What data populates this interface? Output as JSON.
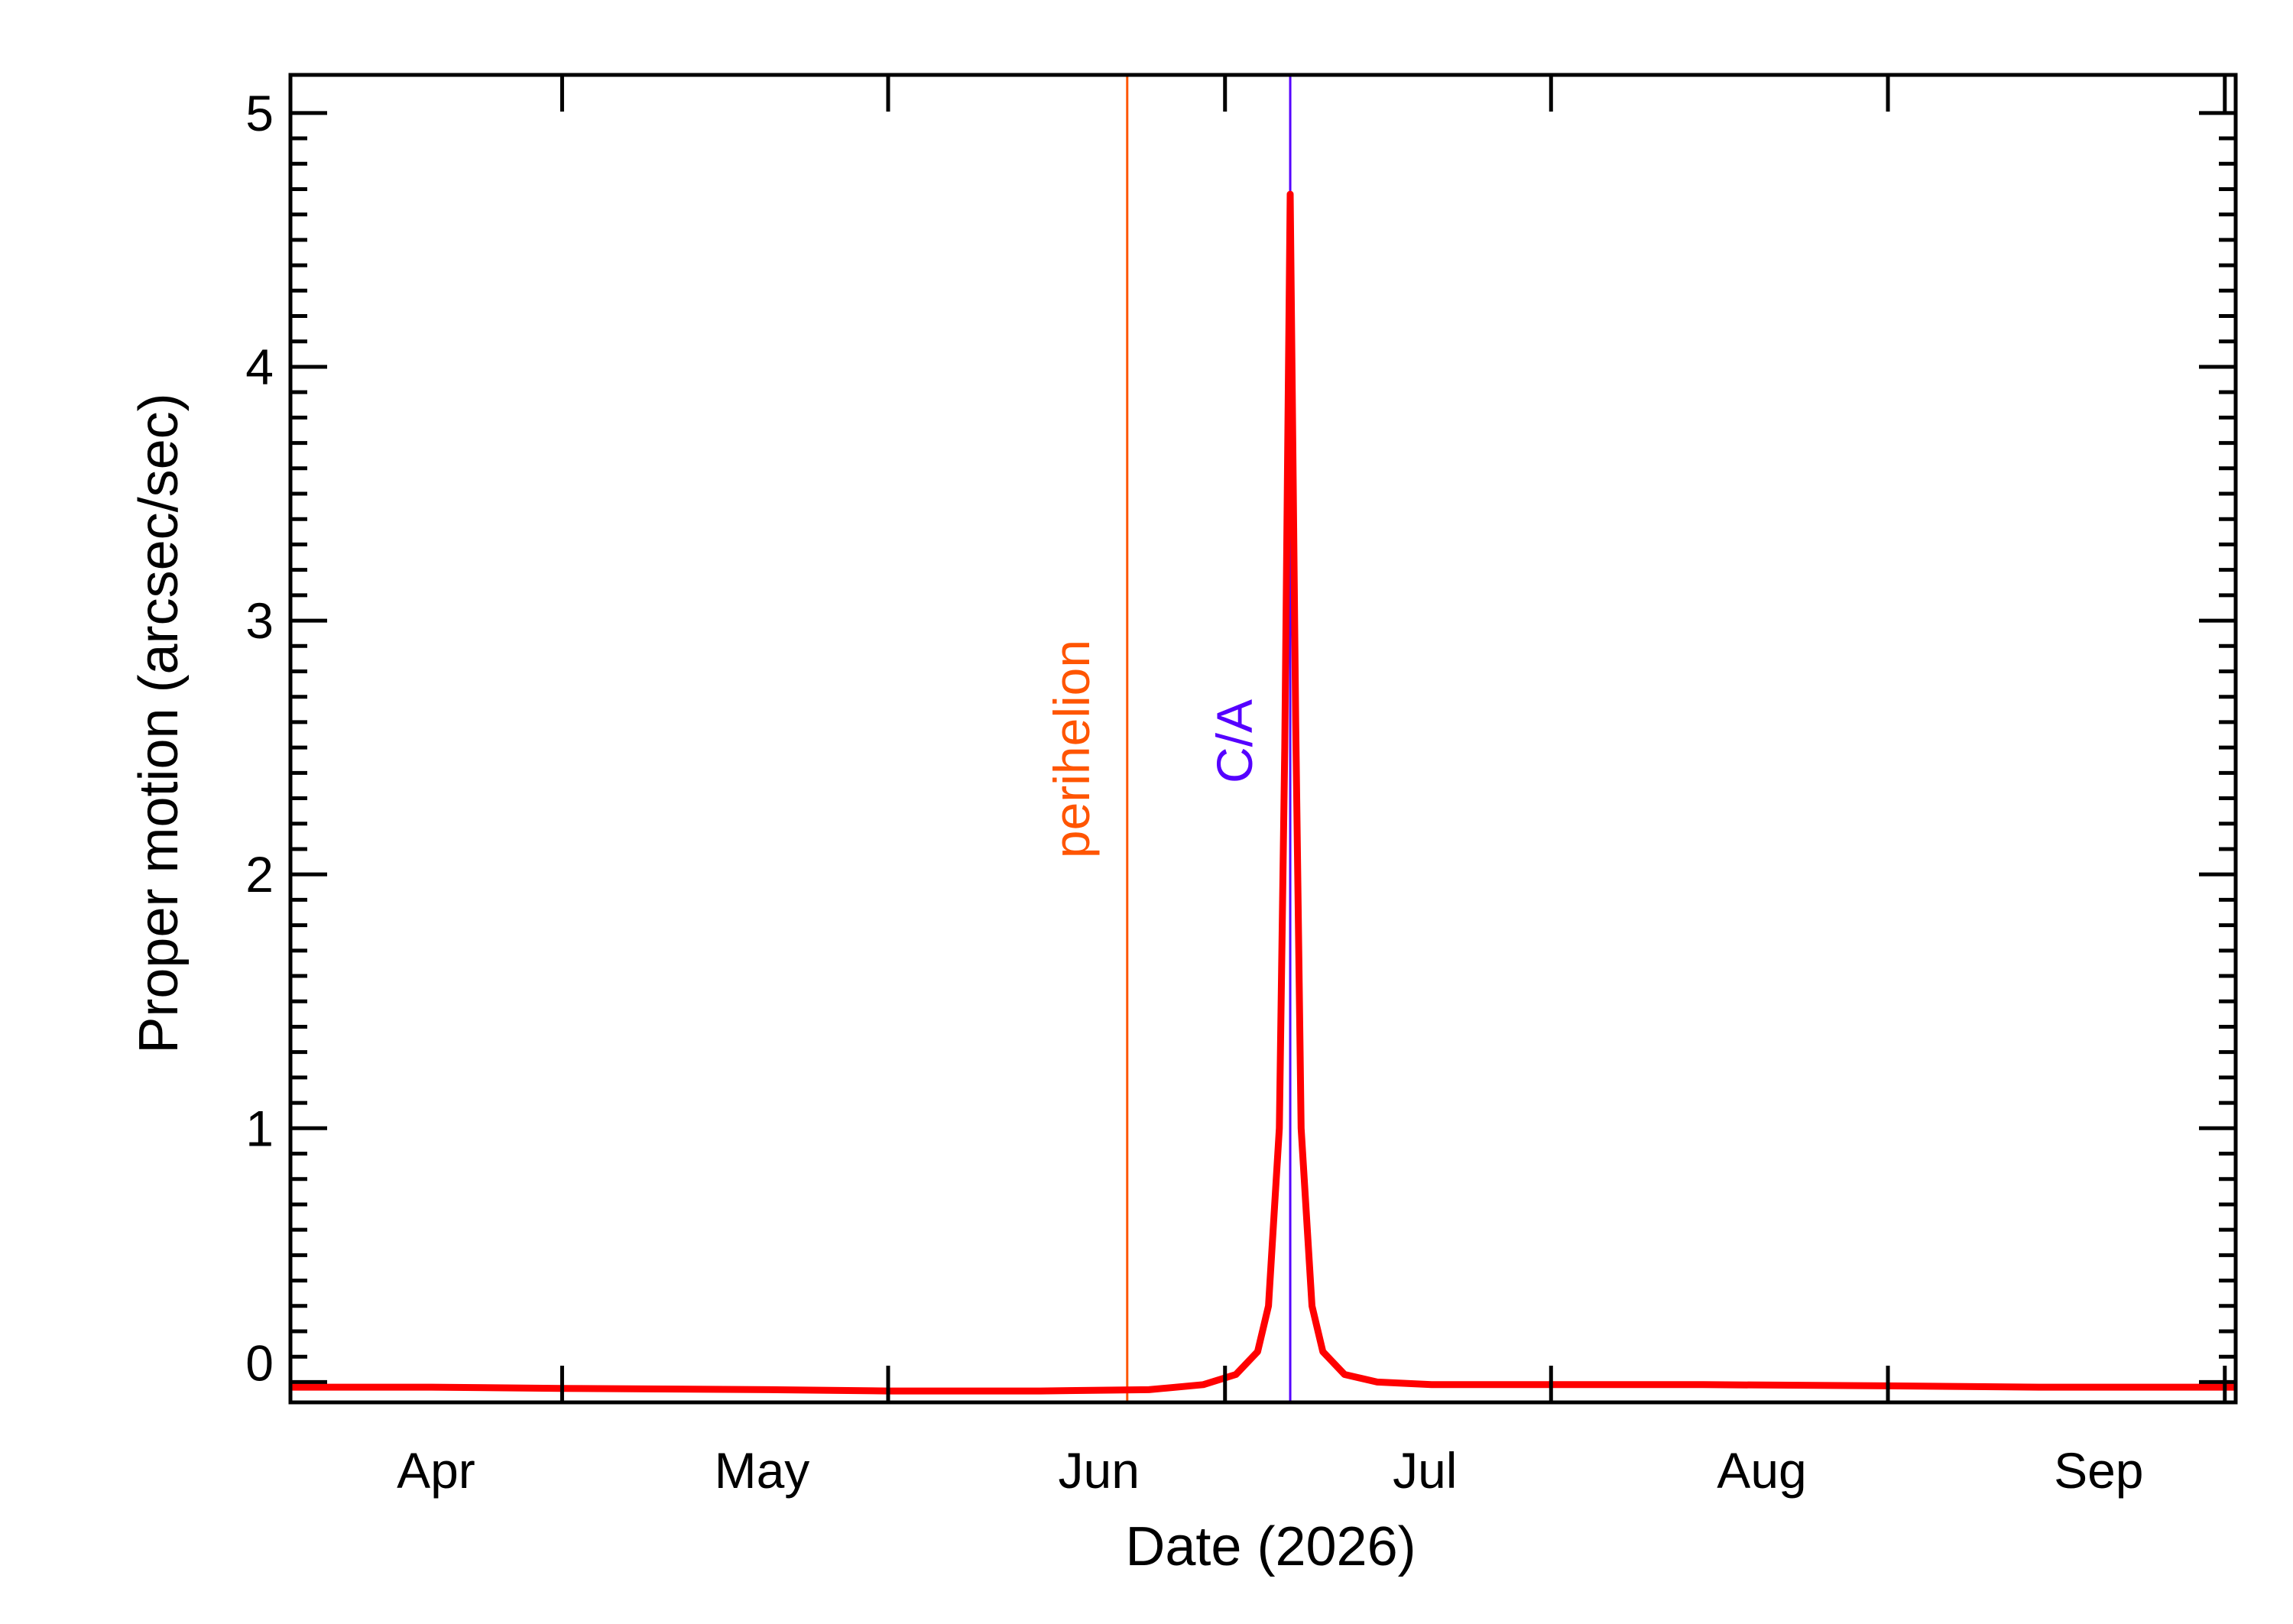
{
  "chart_data": {
    "type": "line",
    "title": "",
    "xlabel": "Date (2026)",
    "ylabel": "Proper motion (arcsec/sec)",
    "x_tick_labels": [
      "Apr",
      "May",
      "Jun",
      "Jul",
      "Aug",
      "Sep"
    ],
    "x_tick_dates": [
      "2026-04-01",
      "2026-05-01",
      "2026-06-01",
      "2026-07-01",
      "2026-08-01",
      "2026-09-01"
    ],
    "y_tick_labels": [
      "0",
      "1",
      "2",
      "3",
      "4",
      "5"
    ],
    "xlim": [
      "2026-03-07",
      "2026-09-02"
    ],
    "ylim": [
      -0.08,
      5.15
    ],
    "grid": false,
    "legend": "none",
    "series": [
      {
        "color": "#ff0000",
        "points": [
          [
            "2026-03-07",
            -0.02
          ],
          [
            "2026-03-20",
            -0.02
          ],
          [
            "2026-04-01",
            -0.025
          ],
          [
            "2026-04-20",
            -0.03
          ],
          [
            "2026-05-01",
            -0.035
          ],
          [
            "2026-05-15",
            -0.035
          ],
          [
            "2026-05-25",
            -0.03
          ],
          [
            "2026-05-30",
            -0.01
          ],
          [
            "2026-06-02",
            0.03
          ],
          [
            "2026-06-04",
            0.12
          ],
          [
            "2026-06-05",
            0.3
          ],
          [
            "2026-06-06",
            1.0
          ],
          [
            "2026-06-06T12:00",
            2.5
          ],
          [
            "2026-06-07",
            4.68
          ],
          [
            "2026-06-07T12:00",
            2.6
          ],
          [
            "2026-06-08",
            1.0
          ],
          [
            "2026-06-09",
            0.3
          ],
          [
            "2026-06-10",
            0.12
          ],
          [
            "2026-06-12",
            0.03
          ],
          [
            "2026-06-15",
            0.0
          ],
          [
            "2026-06-20",
            -0.01
          ],
          [
            "2026-07-01",
            -0.01
          ],
          [
            "2026-07-15",
            -0.01
          ],
          [
            "2026-08-01",
            -0.015
          ],
          [
            "2026-08-15",
            -0.02
          ],
          [
            "2026-09-02",
            -0.02
          ]
        ]
      }
    ],
    "markers": [
      {
        "label": "perihelion",
        "date": "2026-05-23",
        "color": "#ff5500"
      },
      {
        "label": "C/A",
        "date": "2026-06-07",
        "color": "#5500ff"
      }
    ]
  }
}
